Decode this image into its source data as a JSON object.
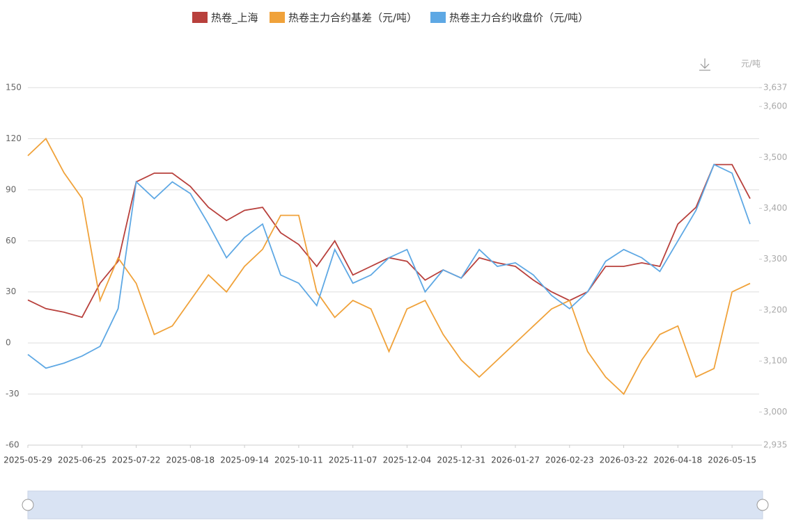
{
  "chart_data": {
    "type": "line",
    "categories": [
      "2025-05-29",
      null,
      null,
      "2025-06-25",
      null,
      null,
      "2025-07-22",
      null,
      null,
      "2025-08-18",
      null,
      null,
      "2025-09-14",
      null,
      null,
      "2025-10-11",
      null,
      null,
      "2025-11-07",
      null,
      null,
      "2025-12-04",
      null,
      null,
      "2025-12-31",
      null,
      null,
      "2026-01-27",
      null,
      null,
      "2026-02-23",
      null,
      null,
      "2026-03-22",
      null,
      null,
      "2026-04-18",
      null,
      null,
      "2026-05-15",
      null
    ],
    "series": [
      {
        "name": "热卷_上海",
        "color": "#b8403c",
        "axis": "y2",
        "values": [
          3220,
          3203,
          3196,
          3186,
          3253,
          3296,
          3452,
          3469,
          3469,
          3443,
          3402,
          3376,
          3396,
          3402,
          3352,
          3329,
          3286,
          3336,
          3269,
          3286,
          3303,
          3296,
          3259,
          3279,
          3263,
          3303,
          3293,
          3286,
          3259,
          3236,
          3219,
          3236,
          3286,
          3286,
          3293,
          3286,
          3369,
          3402,
          3486,
          3486,
          3419
        ]
      },
      {
        "name": "热卷主力合约基差（元/吨）",
        "color": "#f0a23a",
        "axis": "y",
        "values": [
          110,
          120,
          100,
          85,
          25,
          50,
          35,
          5,
          10,
          25,
          40,
          30,
          45,
          55,
          75,
          75,
          30,
          15,
          25,
          20,
          -5,
          20,
          25,
          5,
          -10,
          -20,
          -10,
          0,
          10,
          20,
          25,
          -5,
          -20,
          -30,
          -10,
          5,
          10,
          -20,
          -15,
          30,
          35
        ]
      },
      {
        "name": "热卷主力合约收盘价（元/吨）",
        "color": "#5ea8e4",
        "axis": "y2",
        "values": [
          3113,
          3086,
          3096,
          3110,
          3129,
          3203,
          3452,
          3419,
          3452,
          3429,
          3369,
          3303,
          3343,
          3369,
          3269,
          3253,
          3209,
          3319,
          3253,
          3269,
          3303,
          3319,
          3236,
          3279,
          3263,
          3319,
          3286,
          3293,
          3269,
          3229,
          3203,
          3236,
          3296,
          3319,
          3303,
          3276,
          3336,
          3396,
          3486,
          3469,
          3369
        ]
      }
    ],
    "ylim": [
      -60,
      150
    ],
    "yticks": [
      -60,
      -30,
      0,
      30,
      60,
      90,
      120,
      150
    ],
    "y2lim": [
      2935,
      3637
    ],
    "y2ticks": [
      {
        "value": 2935,
        "label": "2,935"
      },
      {
        "value": 3000,
        "label": "3,000"
      },
      {
        "value": 3100,
        "label": "3,100"
      },
      {
        "value": 3200,
        "label": "3,200"
      },
      {
        "value": 3300,
        "label": "3,300"
      },
      {
        "value": 3400,
        "label": "3,400"
      },
      {
        "value": 3500,
        "label": "3,500"
      },
      {
        "value": 3600,
        "label": "3,600"
      },
      {
        "value": 3637,
        "label": "3,637"
      }
    ],
    "y2label": "元/吨",
    "grid": true,
    "legend": "top"
  }
}
